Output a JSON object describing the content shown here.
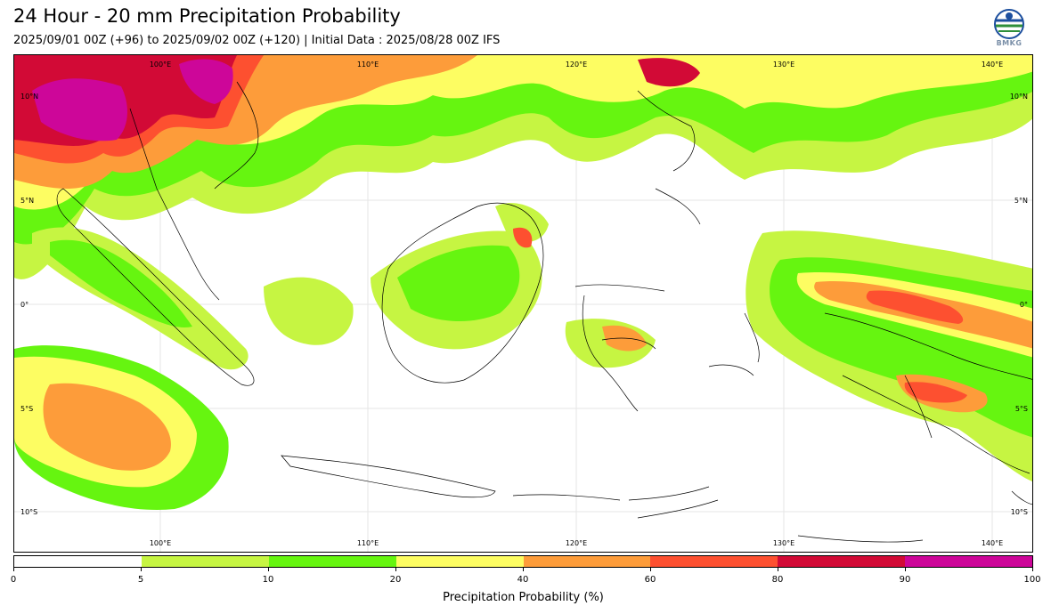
{
  "header": {
    "title": "24 Hour - 20 mm Precipitation Probability",
    "subtitle": "2025/09/01 00Z (+96) to 2025/09/02 00Z (+120) | Initial Data : 2025/08/28 00Z IFS",
    "logo_text": "BMKG"
  },
  "map": {
    "lon_range": [
      93,
      142
    ],
    "lat_range": [
      -12,
      12
    ],
    "lon_labels_top": [
      "100°E",
      "110°E",
      "120°E",
      "130°E",
      "140°E"
    ],
    "lon_labels_bottom": [
      "100°E",
      "110°E",
      "120°E",
      "130°E",
      "140°E"
    ],
    "lat_labels_left": [
      "10°N",
      "5°N",
      "0°",
      "5°S",
      "10°S"
    ],
    "lat_labels_right": [
      "10°N",
      "5°N",
      "0°",
      "5°S",
      "10°S"
    ]
  },
  "colorbar": {
    "label": "Precipitation Probability (%)",
    "ticks": [
      "0",
      "5",
      "10",
      "20",
      "40",
      "60",
      "80",
      "90",
      "100"
    ],
    "colors": [
      "#ffffff",
      "#c6f542",
      "#66f510",
      "#fdfd62",
      "#fd9c3a",
      "#fd5030",
      "#d20a36",
      "#cd0699"
    ]
  }
}
